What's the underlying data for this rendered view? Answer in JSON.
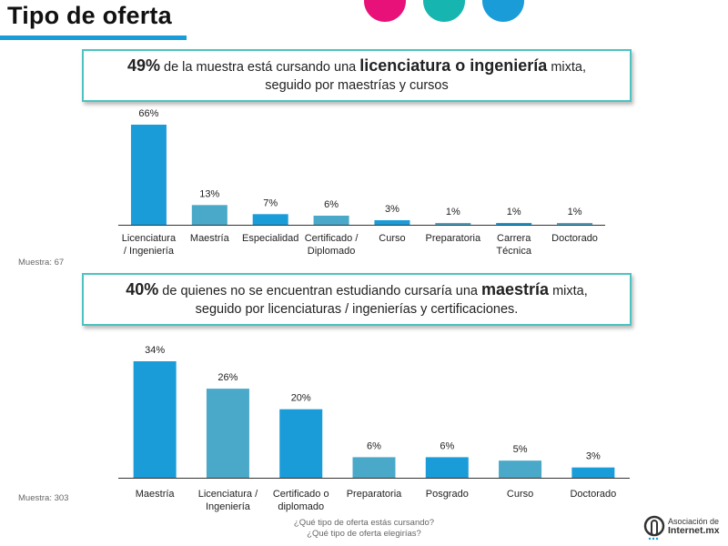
{
  "page": {
    "title": "Tipo de oferta",
    "dot_colors": [
      "#e8117a",
      "#17b5b0",
      "#1a9cd8"
    ],
    "logo_line1": "Asociación de",
    "logo_line2": "Internet.mx"
  },
  "callout1": {
    "pct": "49%",
    "text_a": " de la muestra está cursando una ",
    "emph": "licenciatura o ingeniería",
    "text_b": " mixta,",
    "line2": "seguido por maestrías y cursos"
  },
  "callout2": {
    "pct": "40%",
    "text_a": " de quienes no se encuentran estudiando cursaría una ",
    "emph": "maestría",
    "text_b": " mixta,",
    "line2": "seguido por licenciaturas / ingenierías y certificaciones."
  },
  "sample1": "Muestra: 67",
  "sample2": "Muestra: 303",
  "question": {
    "line1": "¿Qué tipo de oferta estás cursando?",
    "line2": "¿Qué tipo de oferta elegirías?"
  },
  "chart_data": [
    {
      "type": "bar",
      "categories": [
        "Licenciatura / Ingeniería",
        "Maestría",
        "Especialidad",
        "Certificado / Diplomado",
        "Curso",
        "Preparatoria",
        "Carrera Técnica",
        "Doctorado"
      ],
      "category_lines": [
        [
          "Licenciatura",
          "/ Ingeniería"
        ],
        [
          "Maestría"
        ],
        [
          "Especialidad"
        ],
        [
          "Certificado /",
          "Diplomado"
        ],
        [
          "Curso"
        ],
        [
          "Preparatoria"
        ],
        [
          "Carrera",
          "Técnica"
        ],
        [
          "Doctorado"
        ]
      ],
      "values": [
        66,
        13,
        7,
        6,
        3,
        1,
        1,
        1
      ],
      "labels": [
        "66%",
        "13%",
        "7%",
        "6%",
        "3%",
        "1%",
        "1%",
        "1%"
      ],
      "colors": [
        "#1a9cd8",
        "#4aa8c8",
        "#1a9cd8",
        "#4aa8c8",
        "#1a9cd8",
        "#4aa8c8",
        "#1a9cd8",
        "#4aa8c8"
      ],
      "unit": "%",
      "ylim": [
        0,
        66
      ],
      "grid": false
    },
    {
      "type": "bar",
      "categories": [
        "Maestría",
        "Licenciatura / Ingeniería",
        "Certificado o diplomado",
        "Preparatoria",
        "Posgrado",
        "Curso",
        "Doctorado"
      ],
      "category_lines": [
        [
          "Maestría"
        ],
        [
          "Licenciatura /",
          "Ingeniería"
        ],
        [
          "Certificado o",
          "diplomado"
        ],
        [
          "Preparatoria"
        ],
        [
          "Posgrado"
        ],
        [
          "Curso"
        ],
        [
          "Doctorado"
        ]
      ],
      "values": [
        34,
        26,
        20,
        6,
        6,
        5,
        3
      ],
      "labels": [
        "34%",
        "26%",
        "20%",
        "6%",
        "6%",
        "5%",
        "3%"
      ],
      "colors": [
        "#1a9cd8",
        "#4aa8c8",
        "#1a9cd8",
        "#4aa8c8",
        "#1a9cd8",
        "#4aa8c8",
        "#1a9cd8"
      ],
      "unit": "%",
      "ylim": [
        0,
        34
      ],
      "grid": false
    }
  ]
}
